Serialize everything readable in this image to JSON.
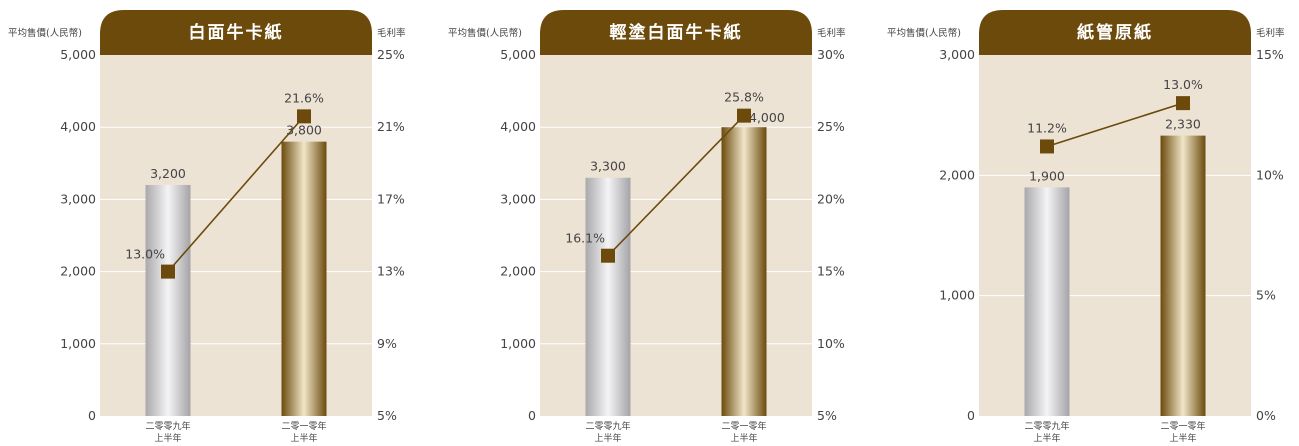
{
  "chart_data": [
    {
      "type": "bar",
      "title": "白面牛卡紙",
      "ylabel_left": "平均售價(人民幣)",
      "ylabel_right": "毛利率",
      "categories": [
        [
          "二零零九年",
          "上半年"
        ],
        [
          "二零一零年",
          "上半年"
        ]
      ],
      "left_ticks": [
        "0",
        "1,000",
        "2,000",
        "3,000",
        "4,000",
        "5,000"
      ],
      "left_ylim": [
        0,
        5000
      ],
      "right_ticks": [
        "5%",
        "9%",
        "13%",
        "17%",
        "21%",
        "25%"
      ],
      "right_ylim": [
        5,
        25
      ],
      "bars": {
        "values": [
          3200,
          3800
        ],
        "labels": [
          "3,200",
          "3,800"
        ]
      },
      "line": {
        "values": [
          13.0,
          21.6
        ],
        "labels": [
          "13.0%",
          "21.6%"
        ]
      }
    },
    {
      "type": "bar",
      "title": "輕塗白面牛卡紙",
      "ylabel_left": "平均售價(人民幣)",
      "ylabel_right": "毛利率",
      "categories": [
        [
          "二零零九年",
          "上半年"
        ],
        [
          "二零一零年",
          "上半年"
        ]
      ],
      "left_ticks": [
        "0",
        "1,000",
        "2,000",
        "3,000",
        "4,000",
        "5,000"
      ],
      "left_ylim": [
        0,
        5000
      ],
      "right_ticks": [
        "5%",
        "10%",
        "15%",
        "20%",
        "25%",
        "30%"
      ],
      "right_ylim": [
        5,
        30
      ],
      "bars": {
        "values": [
          3300,
          4000
        ],
        "labels": [
          "3,300",
          "4,000"
        ]
      },
      "line": {
        "values": [
          16.1,
          25.8
        ],
        "labels": [
          "16.1%",
          "25.8%"
        ]
      }
    },
    {
      "type": "bar",
      "title": "紙管原紙",
      "ylabel_left": "平均售價(人民幣)",
      "ylabel_right": "毛利率",
      "categories": [
        [
          "二零零九年",
          "上半年"
        ],
        [
          "二零一零年",
          "上半年"
        ]
      ],
      "left_ticks": [
        "0",
        "1,000",
        "2,000",
        "3,000"
      ],
      "left_ylim": [
        0,
        3000
      ],
      "right_ticks": [
        "0%",
        "5%",
        "10%",
        "15%"
      ],
      "right_ylim": [
        0,
        15
      ],
      "bars": {
        "values": [
          1900,
          2330
        ],
        "labels": [
          "1,900",
          "2,330"
        ]
      },
      "line": {
        "values": [
          11.2,
          13.0
        ],
        "labels": [
          "11.2%",
          "13.0%"
        ]
      }
    }
  ],
  "colors": {
    "header": "#6b4a0c",
    "plot_bg": "#ede3d5",
    "line": "#6b4a0c",
    "marker": "#6b4a0c",
    "text": "#444444"
  }
}
